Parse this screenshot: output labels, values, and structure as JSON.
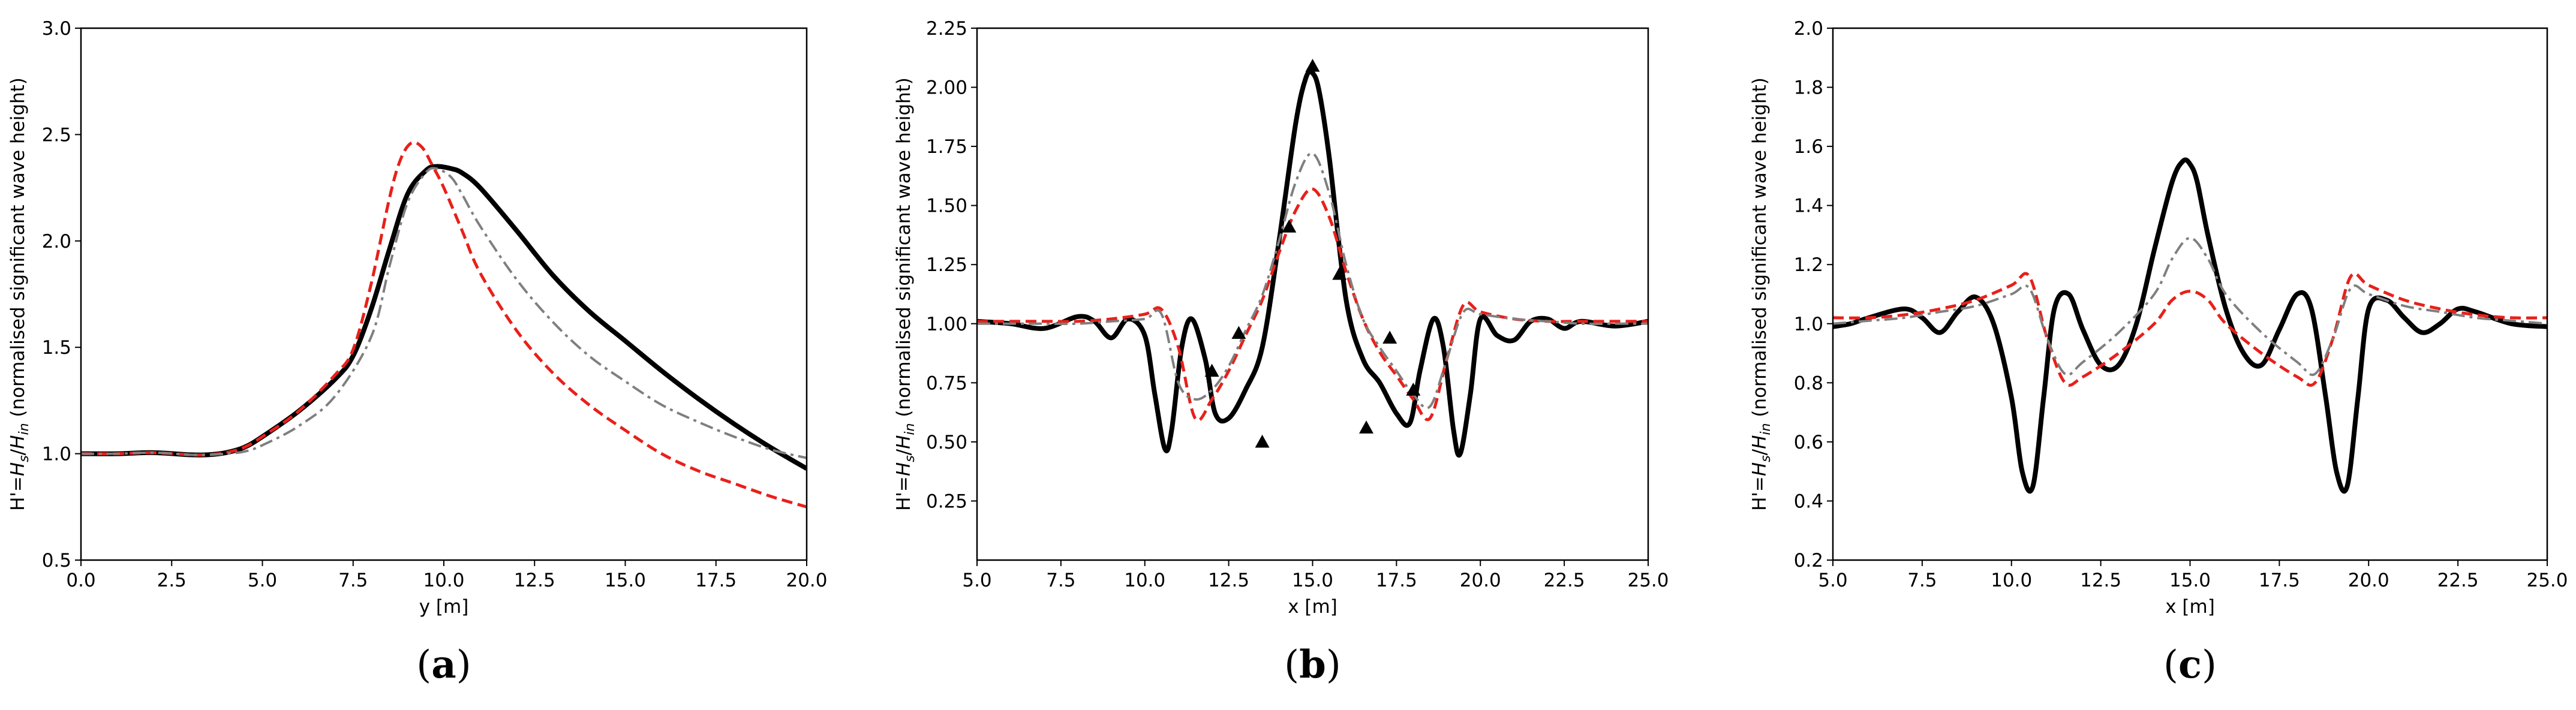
{
  "chart_data": [
    {
      "type": "line",
      "panel_label": "a",
      "xlabel": "y [m]",
      "ylabel_prefix": "H'=",
      "ylabel_suffix": " (normalised significant wave height)",
      "xlim": [
        0,
        20
      ],
      "ylim": [
        0.5,
        3.0
      ],
      "xticks": [
        "0.0",
        "2.5",
        "5.0",
        "7.5",
        "10.0",
        "12.5",
        "15.0",
        "17.5",
        "20.0"
      ],
      "yticks": [
        "0.5",
        "1.0",
        "1.5",
        "2.0",
        "2.5",
        "3.0"
      ],
      "series": [
        {
          "style": "solid-black",
          "x": [
            0,
            1,
            2,
            3,
            3.5,
            4,
            4.5,
            5,
            6,
            7,
            7.5,
            8,
            8.5,
            9,
            9.5,
            9.8,
            10.2,
            10.5,
            11,
            12,
            13,
            14,
            15,
            16,
            17,
            18,
            19,
            20
          ],
          "y": [
            1.0,
            1.0,
            1.005,
            0.995,
            0.995,
            1.005,
            1.03,
            1.08,
            1.2,
            1.35,
            1.46,
            1.68,
            1.96,
            2.22,
            2.33,
            2.35,
            2.34,
            2.32,
            2.25,
            2.05,
            1.84,
            1.67,
            1.53,
            1.39,
            1.26,
            1.14,
            1.03,
            0.93
          ]
        },
        {
          "style": "dash-red",
          "x": [
            0,
            1,
            2,
            3,
            3.5,
            4,
            4.5,
            5,
            6,
            7,
            7.5,
            8,
            8.5,
            8.8,
            9.1,
            9.4,
            9.7,
            10,
            10.5,
            11,
            12,
            13,
            14,
            15,
            16,
            17,
            18,
            19,
            20
          ],
          "y": [
            1.0,
            1.0,
            1.005,
            0.995,
            0.995,
            1.005,
            1.03,
            1.08,
            1.2,
            1.37,
            1.49,
            1.8,
            2.2,
            2.38,
            2.46,
            2.44,
            2.35,
            2.25,
            2.05,
            1.85,
            1.58,
            1.38,
            1.23,
            1.11,
            1.0,
            0.92,
            0.86,
            0.8,
            0.75
          ]
        },
        {
          "style": "dashdot-gray",
          "x": [
            0,
            1,
            2,
            3,
            3.5,
            4,
            4.5,
            5,
            6,
            7,
            8,
            8.5,
            9,
            9.5,
            9.8,
            10.2,
            10.5,
            11,
            12,
            13,
            14,
            15,
            16,
            17,
            18,
            19,
            20
          ],
          "y": [
            1.0,
            1.0,
            1.005,
            0.995,
            0.995,
            1.0,
            1.01,
            1.04,
            1.13,
            1.27,
            1.55,
            1.88,
            2.18,
            2.32,
            2.34,
            2.3,
            2.22,
            2.07,
            1.82,
            1.62,
            1.46,
            1.34,
            1.23,
            1.15,
            1.08,
            1.02,
            0.98
          ]
        }
      ]
    },
    {
      "type": "line",
      "panel_label": "b",
      "xlabel": "x [m]",
      "ylabel_prefix": "H'=",
      "ylabel_suffix": " (normalised significant wave height)",
      "xlim": [
        5,
        25
      ],
      "ylim": [
        0,
        2.25
      ],
      "xticks": [
        "5.0",
        "7.5",
        "10.0",
        "12.5",
        "15.0",
        "17.5",
        "20.0",
        "22.5",
        "25.0"
      ],
      "yticks": [
        "0.25",
        "0.50",
        "0.75",
        "1.00",
        "1.25",
        "1.50",
        "1.75",
        "2.00",
        "2.25"
      ],
      "series": [
        {
          "style": "solid-black",
          "x": [
            5,
            6,
            7,
            8,
            8.5,
            9,
            9.5,
            10,
            10.3,
            10.6,
            10.8,
            11.1,
            11.4,
            11.8,
            12.1,
            12.5,
            13,
            13.5,
            14,
            14.5,
            14.8,
            15,
            15.2,
            15.5,
            16,
            16.5,
            17,
            17.5,
            17.9,
            18.2,
            18.6,
            18.9,
            19.2,
            19.4,
            19.7,
            20,
            20.5,
            21,
            21.5,
            22,
            22.5,
            23,
            24,
            25
          ],
          "y": [
            1.01,
            1.0,
            0.98,
            1.03,
            1.01,
            0.94,
            1.02,
            0.95,
            0.7,
            0.47,
            0.55,
            0.9,
            1.02,
            0.85,
            0.62,
            0.6,
            0.72,
            0.9,
            1.35,
            1.85,
            2.04,
            2.06,
            1.98,
            1.7,
            1.1,
            0.85,
            0.75,
            0.62,
            0.58,
            0.8,
            1.02,
            0.9,
            0.55,
            0.45,
            0.7,
            1.02,
            0.95,
            0.93,
            1.01,
            1.02,
            0.98,
            1.01,
            0.99,
            1.01
          ]
        },
        {
          "style": "dash-red",
          "x": [
            5,
            6,
            7,
            8,
            9,
            10,
            10.5,
            11,
            11.5,
            12,
            12.5,
            13,
            13.5,
            14,
            14.5,
            15,
            15.5,
            16,
            16.5,
            17,
            17.5,
            18,
            18.5,
            19,
            19.5,
            20,
            21,
            22,
            23,
            24,
            25
          ],
          "y": [
            1.01,
            1.01,
            1.01,
            1.01,
            1.02,
            1.04,
            1.06,
            0.9,
            0.6,
            0.68,
            0.8,
            0.95,
            1.1,
            1.3,
            1.48,
            1.57,
            1.45,
            1.22,
            1.02,
            0.88,
            0.78,
            0.68,
            0.6,
            0.85,
            1.08,
            1.05,
            1.02,
            1.01,
            1.01,
            1.01,
            1.01
          ]
        },
        {
          "style": "dashdot-gray",
          "x": [
            5,
            6,
            7,
            8,
            9,
            10,
            10.5,
            11,
            11.5,
            12,
            12.5,
            13,
            13.5,
            14,
            14.5,
            15,
            15.5,
            16,
            16.5,
            17,
            17.5,
            18,
            18.5,
            19,
            19.5,
            20,
            21,
            22,
            23,
            24,
            25
          ],
          "y": [
            1.0,
            1.0,
            1.0,
            1.0,
            1.01,
            1.02,
            1.04,
            0.75,
            0.68,
            0.72,
            0.82,
            0.97,
            1.12,
            1.35,
            1.6,
            1.72,
            1.55,
            1.25,
            1.02,
            0.9,
            0.8,
            0.7,
            0.65,
            0.85,
            1.05,
            1.04,
            1.02,
            1.01,
            1.0,
            1.0,
            1.0
          ]
        }
      ],
      "markers": {
        "style": "triangle-black",
        "x": [
          12.0,
          12.8,
          13.5,
          14.3,
          15.0,
          15.8,
          16.6,
          17.3,
          18.0
        ],
        "y": [
          0.8,
          0.96,
          0.5,
          1.41,
          2.09,
          1.21,
          0.56,
          0.94,
          0.72
        ]
      }
    },
    {
      "type": "line",
      "panel_label": "c",
      "xlabel": "x [m]",
      "ylabel_prefix": "H'=",
      "ylabel_suffix": " (normalised significant wave height)",
      "xlim": [
        5,
        25
      ],
      "ylim": [
        0.2,
        2.0
      ],
      "xticks": [
        "5.0",
        "7.5",
        "10.0",
        "12.5",
        "15.0",
        "17.5",
        "20.0",
        "22.5",
        "25.0"
      ],
      "yticks": [
        "0.2",
        "0.4",
        "0.6",
        "0.8",
        "1.0",
        "1.2",
        "1.4",
        "1.6",
        "1.8",
        "2.0"
      ],
      "series": [
        {
          "style": "solid-black",
          "x": [
            5,
            5.5,
            6,
            7,
            7.5,
            8,
            8.5,
            9,
            9.5,
            10,
            10.3,
            10.6,
            10.9,
            11.2,
            11.6,
            12,
            12.5,
            13,
            13.5,
            14,
            14.5,
            14.8,
            15,
            15.2,
            15.5,
            16,
            16.5,
            17,
            17.5,
            18,
            18.4,
            18.8,
            19.1,
            19.4,
            19.7,
            20,
            20.5,
            21,
            21.5,
            22,
            22.5,
            23,
            24,
            25
          ],
          "y": [
            0.99,
            1.0,
            1.02,
            1.05,
            1.02,
            0.97,
            1.04,
            1.09,
            1.0,
            0.75,
            0.5,
            0.45,
            0.75,
            1.05,
            1.1,
            0.98,
            0.86,
            0.86,
            1.0,
            1.25,
            1.48,
            1.55,
            1.54,
            1.48,
            1.3,
            1.05,
            0.9,
            0.86,
            0.98,
            1.1,
            1.05,
            0.75,
            0.5,
            0.45,
            0.75,
            1.05,
            1.08,
            1.02,
            0.97,
            1.0,
            1.05,
            1.04,
            1.0,
            0.99
          ]
        },
        {
          "style": "dash-red",
          "x": [
            5,
            6,
            7,
            8,
            9,
            10,
            10.5,
            11,
            11.5,
            12,
            13,
            14,
            14.5,
            15,
            15.5,
            16,
            17,
            18,
            18.5,
            19,
            19.5,
            20,
            21,
            22,
            23,
            24,
            25
          ],
          "y": [
            1.02,
            1.02,
            1.03,
            1.05,
            1.08,
            1.13,
            1.16,
            0.95,
            0.8,
            0.82,
            0.9,
            1.0,
            1.08,
            1.11,
            1.08,
            1.0,
            0.9,
            0.82,
            0.8,
            0.95,
            1.16,
            1.13,
            1.08,
            1.05,
            1.03,
            1.02,
            1.02
          ]
        },
        {
          "style": "dashdot-gray",
          "x": [
            5,
            6,
            7,
            8,
            9,
            10,
            10.5,
            11,
            11.5,
            12,
            13,
            14,
            14.5,
            15,
            15.5,
            16,
            17,
            18,
            18.5,
            19,
            19.5,
            20,
            21,
            22,
            23,
            24,
            25
          ],
          "y": [
            1.0,
            1.01,
            1.02,
            1.04,
            1.06,
            1.1,
            1.12,
            0.95,
            0.83,
            0.87,
            0.97,
            1.1,
            1.22,
            1.29,
            1.22,
            1.1,
            0.97,
            0.87,
            0.83,
            0.95,
            1.12,
            1.1,
            1.06,
            1.04,
            1.02,
            1.01,
            1.0
          ]
        }
      ]
    }
  ]
}
